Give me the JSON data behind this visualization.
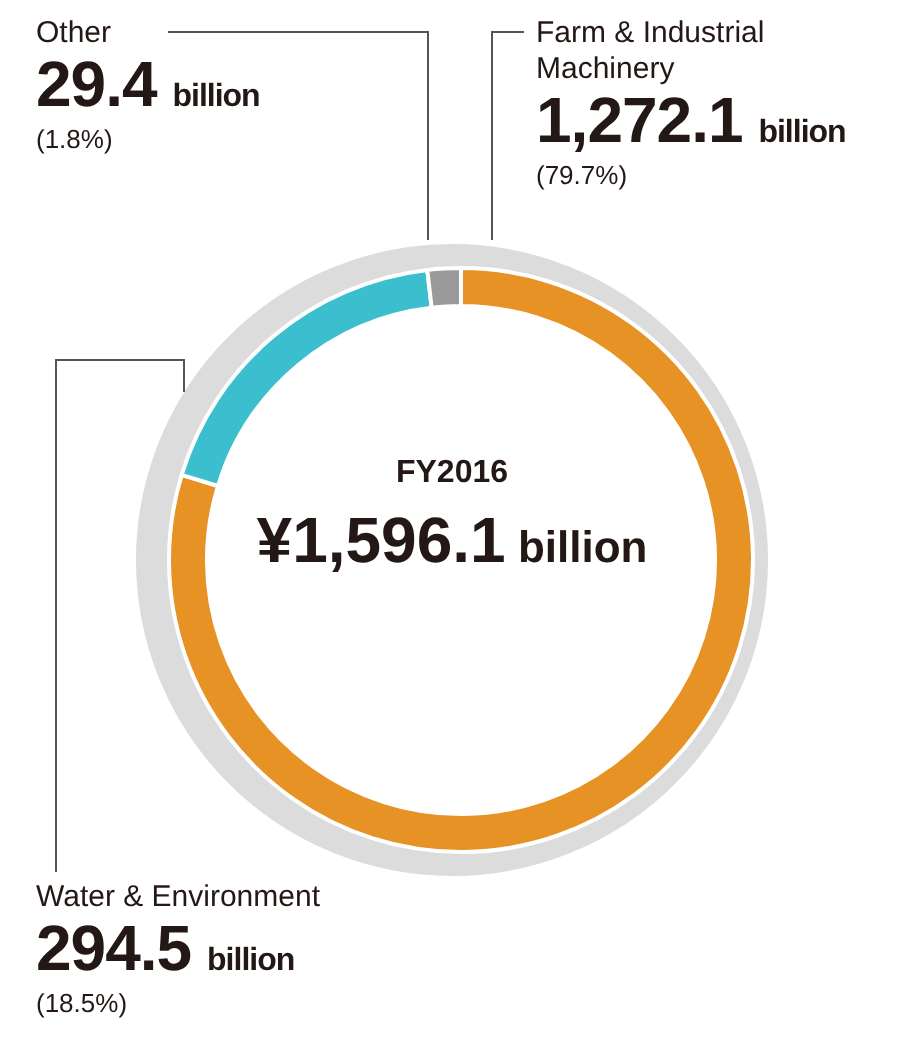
{
  "chart_data": {
    "type": "donut",
    "title": "FY2016",
    "subtitle": "¥1,596.1 billion",
    "categories": [
      "Farm & Industrial Machinery",
      "Water & Environment",
      "Other"
    ],
    "values": [
      1272.1,
      294.5,
      29.4
    ],
    "colors": [
      "#e69224",
      "#3bbfce",
      "#9a9a9a"
    ],
    "value_labels": [
      "1,272.1 billion",
      "294.5 billion",
      "29.4 billion"
    ],
    "annotations": [
      "(79.7%)",
      "(18.5%)",
      "(1.8%)"
    ],
    "legend": false
  }
}
